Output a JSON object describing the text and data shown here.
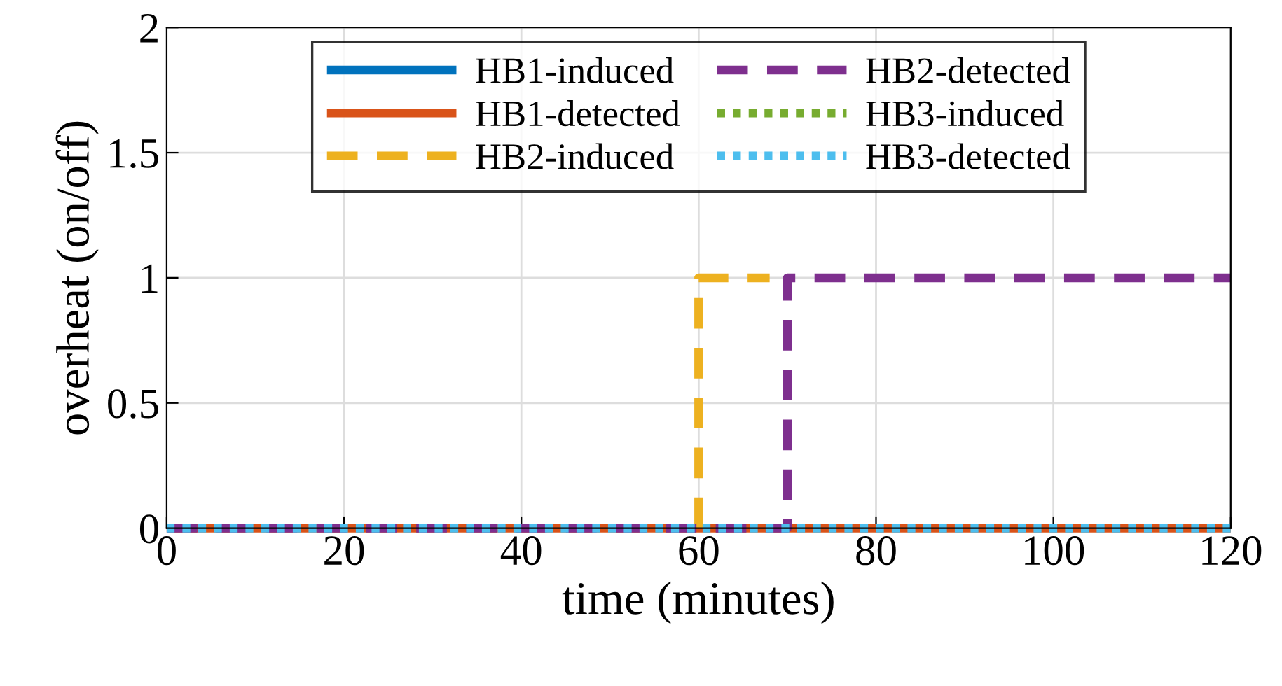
{
  "chart_data": {
    "type": "step",
    "xlabel": "time (minutes)",
    "ylabel": "overheat (on/off)",
    "xlim": [
      0,
      120
    ],
    "xticks": [
      0,
      20,
      40,
      60,
      80,
      100,
      120
    ],
    "ylim": [
      0,
      2
    ],
    "yticks": [
      0,
      0.5,
      1,
      1.5,
      2
    ],
    "grid": true,
    "legend": "top",
    "series": [
      {
        "name": "HB1-induced",
        "color": "#0072bd",
        "line_style": "solid"
      },
      {
        "name": "HB1-detected",
        "color": "#d95319",
        "line_style": "solid",
        "x": [
          0,
          120
        ],
        "values": [
          0,
          0
        ]
      },
      {
        "name": "HB2-induced",
        "color": "#edb120",
        "line_style": "dashed",
        "type": "line",
        "x": [
          60,
          60,
          68
        ],
        "values": [
          0,
          1,
          1
        ]
      },
      {
        "name": "HB2-detected",
        "color": "#7e2f8e",
        "line_style": "dashed",
        "x": [
          0,
          70,
          120
        ],
        "values": [
          0,
          1,
          1
        ]
      },
      {
        "name": "HB3-induced",
        "color": "#77ac30",
        "line_style": "dotted"
      },
      {
        "name": "HB3-detected",
        "color": "#4dbeee",
        "line_style": "dotted",
        "x": [
          0,
          120
        ],
        "values": [
          0,
          0
        ]
      }
    ]
  }
}
